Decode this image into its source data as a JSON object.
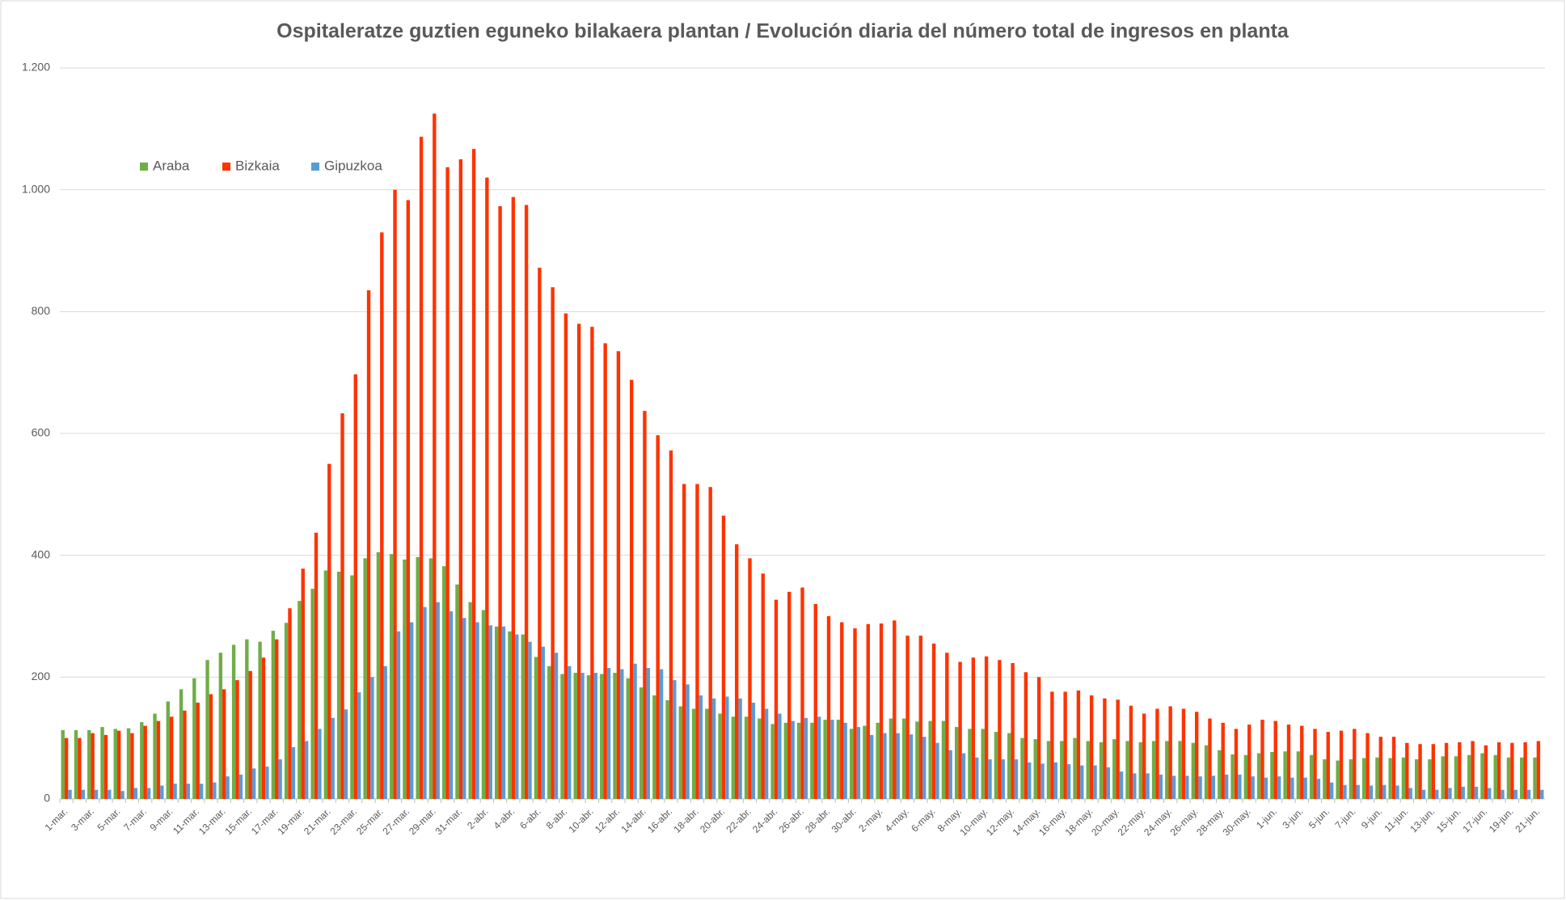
{
  "chart_data": {
    "type": "bar",
    "title": "Ospitaleratze guztien eguneko bilakaera plantan  / Evolución diaria del número total de ingresos en planta",
    "categories": [
      "1-mar.",
      null,
      "3-mar.",
      null,
      "5-mar.",
      null,
      "7-mar.",
      null,
      "9-mar.",
      null,
      "11-mar.",
      null,
      "13-mar.",
      null,
      "15-mar.",
      null,
      "17-mar.",
      null,
      "19-mar.",
      null,
      "21-mar.",
      null,
      "23-mar.",
      null,
      "25-mar.",
      null,
      "27-mar.",
      null,
      "29-mar.",
      null,
      "31-mar.",
      null,
      "2-abr.",
      null,
      "4-abr.",
      null,
      "6-abr.",
      null,
      "8-abr.",
      null,
      "10-abr.",
      null,
      "12-abr.",
      null,
      "14-abr.",
      null,
      "16-abr.",
      null,
      "18-abr.",
      null,
      "20-abr.",
      null,
      "22-abr.",
      null,
      "24-abr.",
      null,
      "26-abr.",
      null,
      "28-abr.",
      null,
      "30-abr.",
      null,
      "2-may.",
      null,
      "4-may.",
      null,
      "6-may.",
      null,
      "8-may.",
      null,
      "10-may.",
      null,
      "12-may.",
      null,
      "14-may.",
      null,
      "16-may.",
      null,
      "18-may.",
      null,
      "20-may.",
      null,
      "22-may.",
      null,
      "24-may.",
      null,
      "26-may.",
      null,
      "28-may.",
      null,
      "30-may.",
      null,
      "1-jun.",
      null,
      "3-jun.",
      null,
      "5-jun.",
      null,
      "7-jun.",
      null,
      "9-jun.",
      null,
      "11-jun.",
      null,
      "13-jun.",
      null,
      "15-jun.",
      null,
      "17-jun.",
      null,
      "19-jun.",
      null,
      "21-jun."
    ],
    "series": [
      {
        "name": "Araba",
        "color": "#70ad47",
        "values": [
          113,
          113,
          113,
          118,
          115,
          116,
          126,
          140,
          160,
          180,
          198,
          228,
          240,
          253,
          262,
          258,
          276,
          289,
          325,
          345,
          375,
          373,
          367,
          395,
          405,
          402,
          393,
          397,
          395,
          382,
          352,
          323,
          310,
          283,
          275,
          270,
          233,
          218,
          205,
          207,
          203,
          205,
          207,
          198,
          183,
          170,
          162,
          152,
          148,
          148,
          140,
          135,
          135,
          132,
          123,
          125,
          125,
          125,
          130,
          130,
          115,
          120,
          125,
          132,
          132,
          127,
          128,
          128,
          118,
          115,
          115,
          110,
          108,
          100,
          98,
          95,
          95,
          100,
          95,
          93,
          98,
          95,
          93,
          95,
          95,
          95,
          92,
          88,
          80,
          73,
          72,
          75,
          77,
          78,
          78,
          72,
          65,
          63,
          65,
          67,
          68,
          67,
          68,
          65,
          65,
          70,
          70,
          72,
          75,
          72,
          68,
          68,
          68
        ]
      },
      {
        "name": "Bizkaia",
        "color": "#ff3300",
        "values": [
          100,
          100,
          108,
          105,
          112,
          108,
          120,
          128,
          135,
          145,
          158,
          172,
          180,
          195,
          210,
          232,
          262,
          313,
          378,
          437,
          550,
          633,
          697,
          835,
          930,
          1000,
          983,
          1087,
          1125,
          1037,
          1050,
          1067,
          1020,
          973,
          988,
          975,
          872,
          840,
          797,
          780,
          775,
          748,
          735,
          688,
          637,
          597,
          572,
          517,
          517,
          512,
          465,
          418,
          395,
          370,
          327,
          340,
          347,
          320,
          300,
          290,
          280,
          287,
          288,
          293,
          268,
          268,
          255,
          240,
          225,
          232,
          234,
          228,
          223,
          208,
          200,
          176,
          176,
          178,
          170,
          165,
          163,
          153,
          140,
          148,
          152,
          148,
          143,
          132,
          125,
          115,
          122,
          130,
          128,
          122,
          120,
          115,
          110,
          112,
          115,
          108,
          102,
          102,
          92,
          90,
          90,
          92,
          93,
          95,
          88,
          93,
          92,
          93,
          95
        ]
      },
      {
        "name": "Gipuzkoa",
        "color": "#5b9bd5",
        "values": [
          15,
          15,
          15,
          15,
          13,
          18,
          18,
          22,
          25,
          25,
          25,
          27,
          37,
          40,
          50,
          53,
          65,
          85,
          95,
          115,
          133,
          147,
          175,
          200,
          218,
          275,
          290,
          315,
          323,
          308,
          297,
          290,
          285,
          283,
          270,
          258,
          250,
          240,
          218,
          207,
          207,
          215,
          213,
          222,
          215,
          213,
          195,
          188,
          170,
          165,
          168,
          165,
          158,
          148,
          140,
          128,
          133,
          135,
          130,
          125,
          118,
          105,
          108,
          108,
          106,
          102,
          92,
          80,
          75,
          68,
          65,
          65,
          65,
          60,
          58,
          60,
          57,
          55,
          55,
          52,
          45,
          42,
          42,
          40,
          38,
          38,
          37,
          38,
          40,
          40,
          37,
          35,
          37,
          35,
          35,
          33,
          27,
          23,
          23,
          22,
          23,
          22,
          18,
          15,
          15,
          18,
          20,
          20,
          18,
          15,
          15,
          15,
          15
        ]
      }
    ],
    "ylim": [
      0,
      1200
    ],
    "yticks": [
      0,
      200,
      400,
      600,
      800,
      {
        "value": 1000,
        "label": "1.000"
      },
      {
        "value": 1200,
        "label": "1.200"
      }
    ],
    "grid": true,
    "legend": "top-left"
  }
}
